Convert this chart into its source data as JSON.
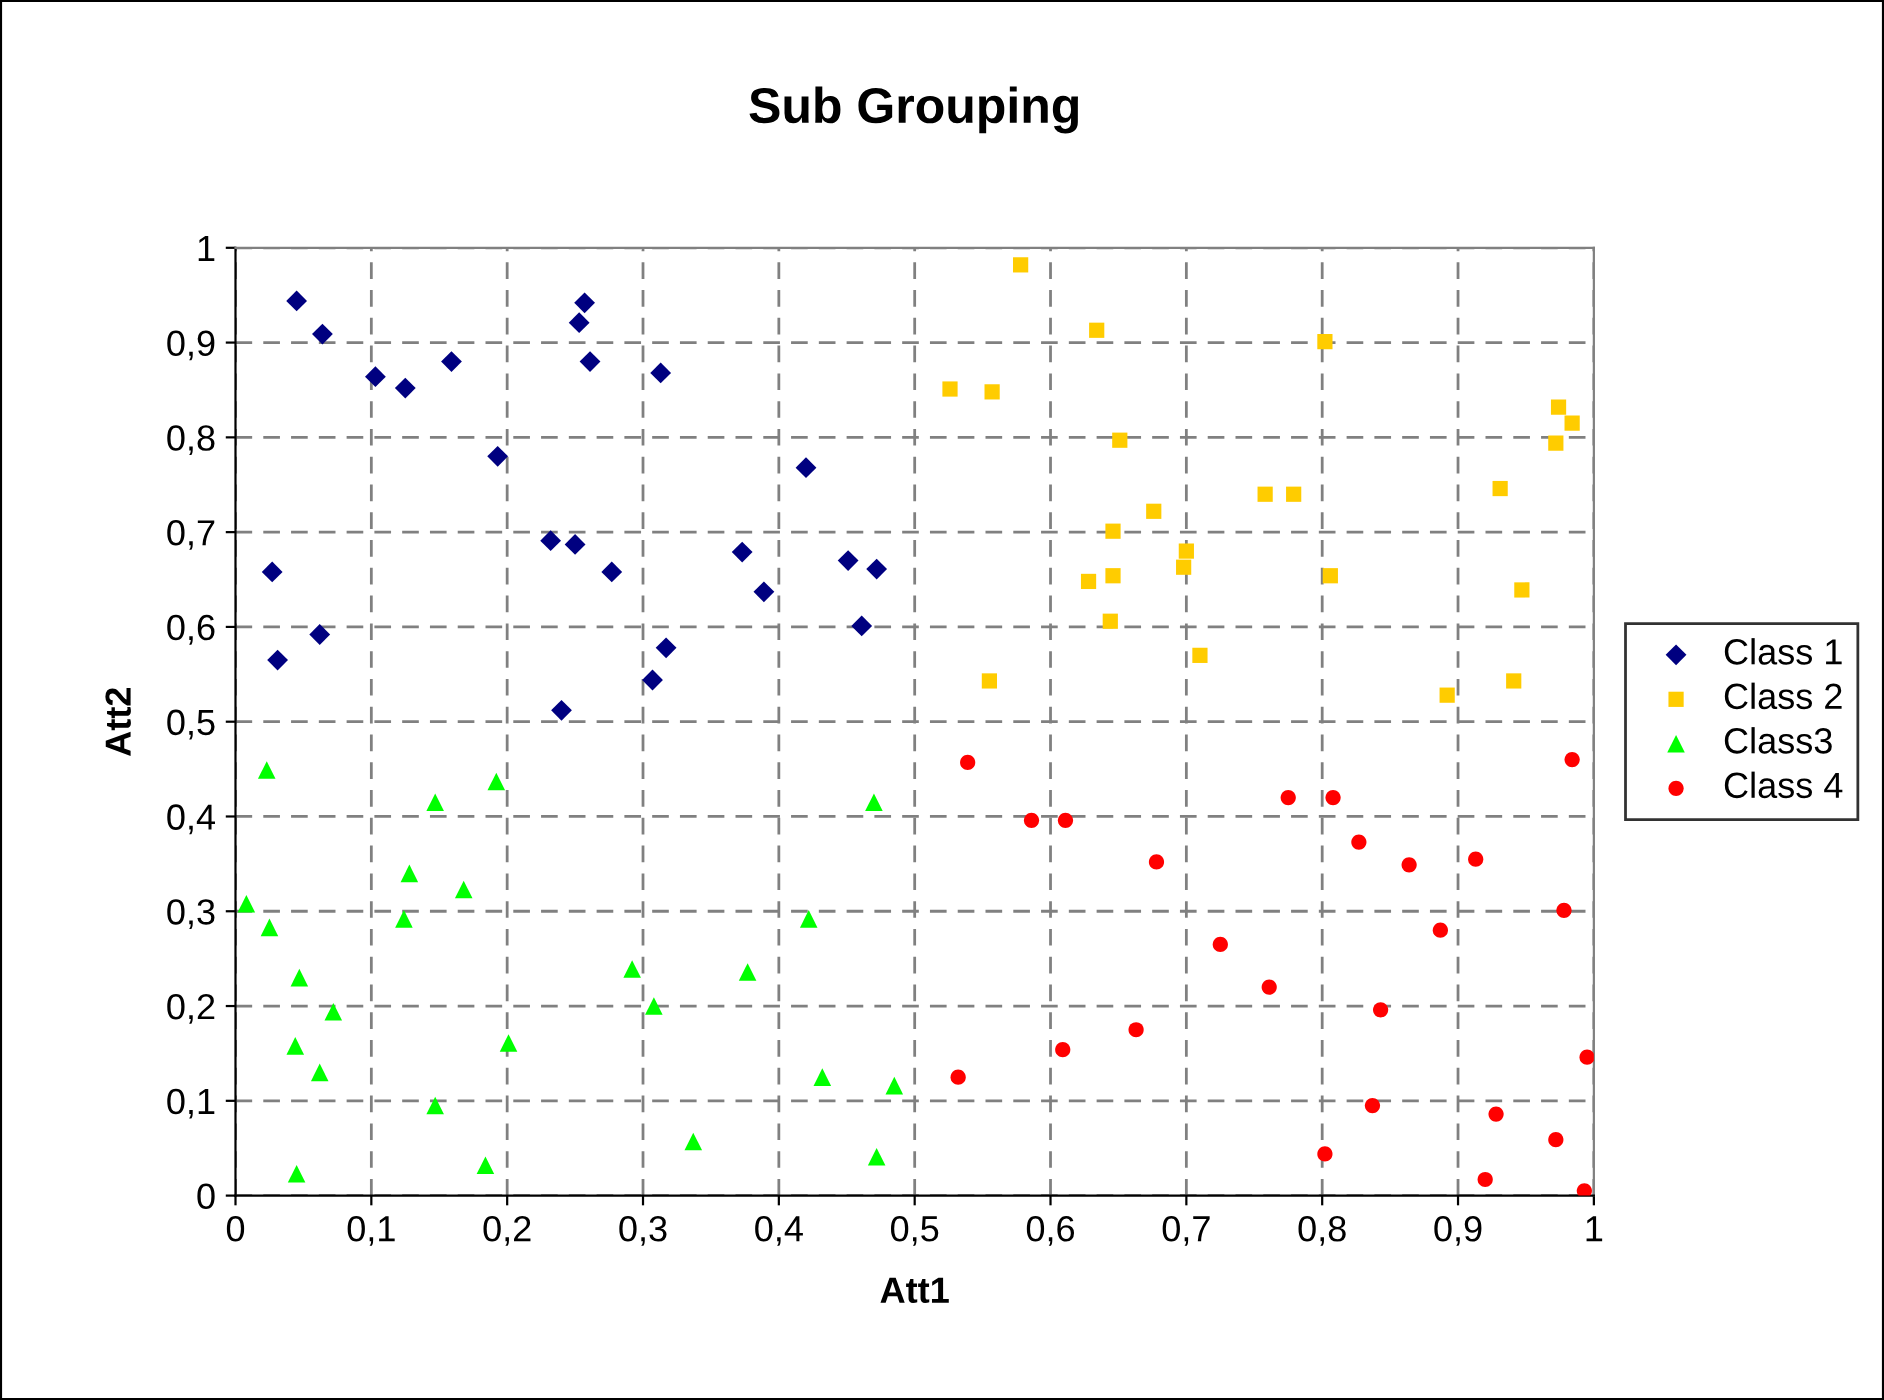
{
  "chart_data": {
    "type": "scatter",
    "title": "Sub Grouping",
    "xlabel": "Att1",
    "ylabel": "Att2",
    "xlim": [
      0,
      1
    ],
    "ylim": [
      0,
      1
    ],
    "xticks": [
      0,
      {
        "value": 0.1,
        "label": "0,1"
      },
      {
        "value": 0.2,
        "label": "0,2"
      },
      {
        "value": 0.3,
        "label": "0,3"
      },
      {
        "value": 0.4,
        "label": "0,4"
      },
      {
        "value": 0.5,
        "label": "0,5"
      },
      {
        "value": 0.6,
        "label": "0,6"
      },
      {
        "value": 0.7,
        "label": "0,7"
      },
      {
        "value": 0.8,
        "label": "0,8"
      },
      {
        "value": 0.9,
        "label": "0,9"
      },
      1
    ],
    "yticks": [
      0,
      {
        "value": 0.1,
        "label": "0,1"
      },
      {
        "value": 0.2,
        "label": "0,2"
      },
      {
        "value": 0.3,
        "label": "0,3"
      },
      {
        "value": 0.4,
        "label": "0,4"
      },
      {
        "value": 0.5,
        "label": "0,5"
      },
      {
        "value": 0.6,
        "label": "0,6"
      },
      {
        "value": 0.7,
        "label": "0,7"
      },
      {
        "value": 0.8,
        "label": "0,8"
      },
      {
        "value": 0.9,
        "label": "0,9"
      },
      1
    ],
    "grid": true,
    "legend": "right",
    "series": [
      {
        "name": "Class 1",
        "color": "#000080",
        "marker": "diamond",
        "x": [
          0.045,
          0.064,
          0.103,
          0.125,
          0.159,
          0.193,
          0.232,
          0.25,
          0.257,
          0.253,
          0.261,
          0.313,
          0.277,
          0.027,
          0.031,
          0.062,
          0.24,
          0.307,
          0.317,
          0.42,
          0.373,
          0.389,
          0.451,
          0.472,
          0.461
        ],
        "values": [
          0.944,
          0.909,
          0.864,
          0.852,
          0.88,
          0.78,
          0.691,
          0.687,
          0.942,
          0.921,
          0.88,
          0.868,
          0.658,
          0.658,
          0.565,
          0.592,
          0.512,
          0.544,
          0.578,
          0.768,
          0.679,
          0.637,
          0.67,
          0.661,
          0.601
        ]
      },
      {
        "name": "Class 2",
        "color": "#ffcc00",
        "marker": "square",
        "x": [
          0.578,
          0.634,
          0.802,
          0.526,
          0.557,
          0.651,
          0.974,
          0.984,
          0.972,
          0.758,
          0.779,
          0.931,
          0.676,
          0.646,
          0.7,
          0.698,
          0.628,
          0.646,
          0.806,
          0.947,
          0.644,
          0.71,
          0.555,
          0.892,
          0.941
        ],
        "values": [
          0.982,
          0.913,
          0.901,
          0.851,
          0.848,
          0.797,
          0.832,
          0.815,
          0.794,
          0.74,
          0.74,
          0.746,
          0.722,
          0.701,
          0.68,
          0.663,
          0.648,
          0.654,
          0.654,
          0.639,
          0.606,
          0.57,
          0.543,
          0.528,
          0.543
        ]
      },
      {
        "name": "Class3",
        "color": "#00ff00",
        "marker": "triangle",
        "x": [
          0.023,
          0.192,
          0.147,
          0.47,
          0.128,
          0.168,
          0.008,
          0.124,
          0.025,
          0.422,
          0.047,
          0.072,
          0.044,
          0.062,
          0.201,
          0.292,
          0.308,
          0.377,
          0.432,
          0.485,
          0.147,
          0.337,
          0.045,
          0.184,
          0.472
        ],
        "values": [
          0.449,
          0.437,
          0.415,
          0.415,
          0.34,
          0.323,
          0.308,
          0.292,
          0.283,
          0.292,
          0.23,
          0.194,
          0.158,
          0.13,
          0.161,
          0.239,
          0.2,
          0.236,
          0.125,
          0.116,
          0.095,
          0.057,
          0.023,
          0.032,
          0.041
        ]
      },
      {
        "name": "Class 4",
        "color": "#ff0000",
        "marker": "circle",
        "x": [
          0.539,
          0.586,
          0.611,
          0.775,
          0.808,
          0.984,
          0.678,
          0.827,
          0.864,
          0.913,
          0.978,
          0.887,
          0.725,
          0.761,
          0.843,
          0.663,
          0.609,
          0.532,
          0.995,
          0.837,
          0.928,
          0.972,
          0.802,
          0.92,
          0.993
        ],
        "values": [
          0.457,
          0.396,
          0.396,
          0.42,
          0.42,
          0.46,
          0.352,
          0.373,
          0.349,
          0.355,
          0.301,
          0.28,
          0.265,
          0.22,
          0.196,
          0.175,
          0.154,
          0.125,
          0.146,
          0.095,
          0.086,
          0.059,
          0.044,
          0.017,
          0.005
        ]
      }
    ]
  }
}
